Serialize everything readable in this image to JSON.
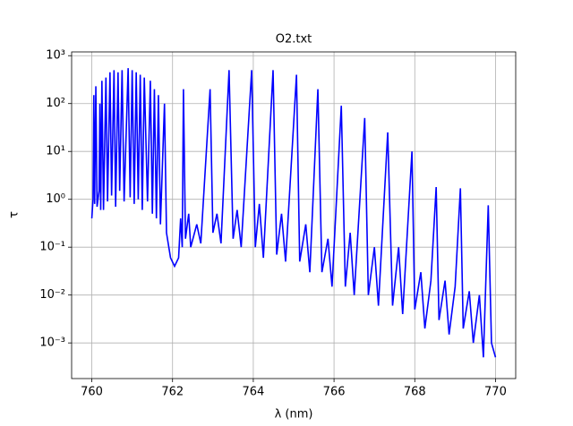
{
  "chart_data": {
    "type": "line",
    "title": "O2.txt",
    "xlabel": "λ (nm)",
    "ylabel": "τ",
    "log_y": true,
    "grid": true,
    "xlim": [
      759.5,
      770.5
    ],
    "ylim": [
      0.00018,
      1200
    ],
    "xticks": [
      760,
      762,
      764,
      766,
      768,
      770
    ],
    "yticks": [
      {
        "value": 0.001,
        "label": "10⁻³"
      },
      {
        "value": 0.01,
        "label": "10⁻²"
      },
      {
        "value": 0.1,
        "label": "10⁻¹"
      },
      {
        "value": 1,
        "label": "10⁰"
      },
      {
        "value": 10,
        "label": "10¹"
      },
      {
        "value": 100,
        "label": "10²"
      },
      {
        "value": 1000,
        "label": "10³"
      }
    ],
    "x": [
      760.0,
      760.03,
      760.05,
      760.07,
      760.1,
      760.13,
      760.18,
      760.2,
      760.22,
      760.25,
      760.29,
      760.35,
      760.39,
      760.45,
      760.49,
      760.55,
      760.59,
      760.65,
      760.69,
      760.75,
      760.8,
      760.9,
      760.95,
      761.0,
      761.05,
      761.1,
      761.15,
      761.2,
      761.25,
      761.3,
      761.38,
      761.45,
      761.5,
      761.55,
      761.6,
      761.65,
      761.7,
      761.8,
      761.85,
      761.95,
      762.05,
      762.15,
      762.2,
      762.24,
      762.27,
      762.32,
      762.4,
      762.45,
      762.6,
      762.7,
      762.93,
      763.0,
      763.1,
      763.2,
      763.4,
      763.5,
      763.6,
      763.7,
      763.96,
      764.05,
      764.15,
      764.25,
      764.49,
      764.58,
      764.7,
      764.8,
      765.07,
      765.15,
      765.3,
      765.4,
      765.6,
      765.7,
      765.85,
      765.95,
      766.18,
      766.28,
      766.4,
      766.5,
      766.76,
      766.85,
      767.0,
      767.1,
      767.33,
      767.45,
      767.6,
      767.7,
      767.93,
      768.0,
      768.15,
      768.25,
      768.4,
      768.53,
      768.6,
      768.75,
      768.85,
      769.0,
      769.13,
      769.2,
      769.35,
      769.45,
      769.6,
      769.7,
      769.82,
      769.9,
      770.0
    ],
    "series": [
      {
        "color": "#0000ff",
        "values": [
          0.4,
          1,
          150,
          0.8,
          230,
          0.7,
          1.5,
          100,
          0.6,
          300,
          0.6,
          350,
          0.9,
          450,
          1.2,
          500,
          0.7,
          450,
          1.5,
          500,
          0.9,
          550,
          1.1,
          500,
          0.8,
          450,
          1.0,
          400,
          0.6,
          350,
          0.9,
          300,
          0.5,
          200,
          0.4,
          150,
          0.3,
          100,
          0.2,
          0.06,
          0.04,
          0.06,
          0.4,
          0.1,
          200,
          0.15,
          0.5,
          0.1,
          0.3,
          0.12,
          200,
          0.2,
          0.5,
          0.12,
          500,
          0.15,
          0.6,
          0.1,
          500,
          0.1,
          0.8,
          0.06,
          500,
          0.07,
          0.5,
          0.05,
          400,
          0.05,
          0.3,
          0.03,
          200,
          0.03,
          0.15,
          0.015,
          90,
          0.015,
          0.2,
          0.01,
          50,
          0.01,
          0.1,
          0.006,
          25,
          0.006,
          0.1,
          0.004,
          10,
          0.005,
          0.03,
          0.002,
          0.02,
          1.8,
          0.003,
          0.02,
          0.0015,
          0.015,
          1.7,
          0.002,
          0.012,
          0.001,
          0.01,
          0.0005,
          0.75,
          0.001,
          0.0005
        ]
      }
    ]
  }
}
